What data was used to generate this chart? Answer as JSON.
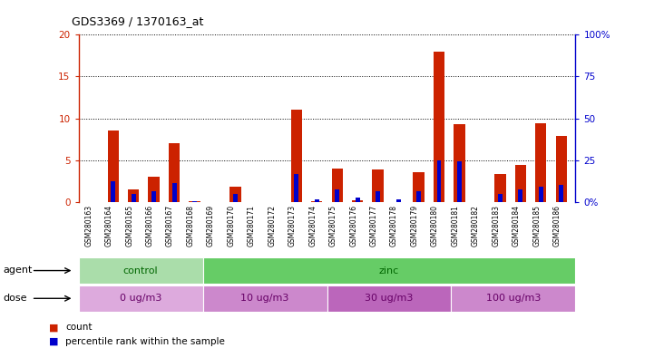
{
  "title": "GDS3369 / 1370163_at",
  "samples": [
    "GSM280163",
    "GSM280164",
    "GSM280165",
    "GSM280166",
    "GSM280167",
    "GSM280168",
    "GSM280169",
    "GSM280170",
    "GSM280171",
    "GSM280172",
    "GSM280173",
    "GSM280174",
    "GSM280175",
    "GSM280176",
    "GSM280177",
    "GSM280178",
    "GSM280179",
    "GSM280180",
    "GSM280181",
    "GSM280182",
    "GSM280183",
    "GSM280184",
    "GSM280185",
    "GSM280186"
  ],
  "count": [
    0,
    8.5,
    1.5,
    3.0,
    7.0,
    0.05,
    0,
    1.8,
    0,
    0,
    11.0,
    0.1,
    4.0,
    0.2,
    3.9,
    0,
    3.5,
    18.0,
    9.3,
    0,
    3.3,
    4.4,
    9.4,
    7.9
  ],
  "percentile": [
    0,
    12.5,
    5.0,
    6.5,
    11.5,
    0.5,
    0,
    4.5,
    0,
    0,
    16.5,
    1.5,
    7.5,
    2.5,
    6.5,
    1.5,
    6.5,
    25.0,
    24.0,
    0,
    5.0,
    7.5,
    9.0,
    10.0
  ],
  "bar_color": "#cc2200",
  "pct_color": "#0000cc",
  "ylim_left": [
    0,
    20
  ],
  "ylim_right": [
    0,
    100
  ],
  "yticks_left": [
    0,
    5,
    10,
    15,
    20
  ],
  "yticks_right": [
    0,
    25,
    50,
    75,
    100
  ],
  "ytick_labels_left": [
    "0",
    "5",
    "10",
    "15",
    "20"
  ],
  "ytick_labels_right": [
    "0%",
    "25",
    "50",
    "75",
    "100%"
  ],
  "agent_groups": [
    {
      "label": "control",
      "start": 0,
      "end": 6,
      "color": "#aaddaa"
    },
    {
      "label": "zinc",
      "start": 6,
      "end": 24,
      "color": "#66cc66"
    }
  ],
  "dose_groups": [
    {
      "label": "0 ug/m3",
      "start": 0,
      "end": 6,
      "color": "#ddaadd"
    },
    {
      "label": "10 ug/m3",
      "start": 6,
      "end": 12,
      "color": "#cc88cc"
    },
    {
      "label": "30 ug/m3",
      "start": 12,
      "end": 18,
      "color": "#bb66bb"
    },
    {
      "label": "100 ug/m3",
      "start": 18,
      "end": 24,
      "color": "#cc88cc"
    }
  ],
  "legend_count_label": "count",
  "legend_pct_label": "percentile rank within the sample",
  "agent_label": "agent",
  "dose_label": "dose",
  "fig_bg": "#ffffff",
  "plot_bg": "#ffffff"
}
